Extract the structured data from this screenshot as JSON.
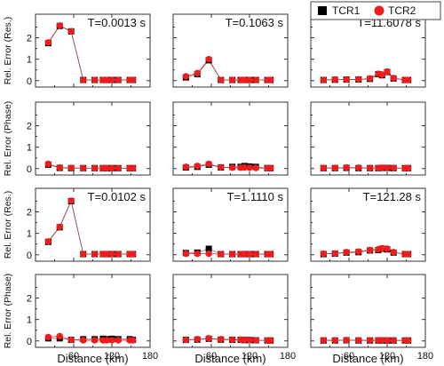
{
  "chart_data": {
    "type": "scatter",
    "colors": {
      "TCR1": "#000000",
      "TCR2": "#ee1c1c",
      "line": "#e84a4a",
      "frame": "#333333"
    },
    "legend": {
      "placement": "top-right",
      "entries": [
        "TCR1",
        "TCR2"
      ]
    },
    "xlabel": "Distance (km)",
    "xlim": [
      0,
      180
    ],
    "xticks": [
      0,
      60,
      120,
      180
    ],
    "x": [
      20,
      38,
      56,
      75,
      93,
      106,
      112,
      120,
      130,
      148,
      153
    ],
    "row_ylabels": [
      "Rel. Error (Res.)",
      "Rel. Error (Phase)",
      "Rel. Error (Res.)",
      "Rel. Error (Phase)"
    ],
    "row_yticks": [
      [
        0,
        1,
        2
      ],
      [
        0,
        1,
        2
      ],
      [
        0,
        1,
        2
      ],
      [
        0,
        1,
        2
      ]
    ],
    "ylim": [
      -0.3,
      3.1
    ],
    "panels": [
      {
        "row": 0,
        "col": 0,
        "annotation": "T=0.0013 s",
        "series": [
          {
            "name": "TCR1",
            "values": [
              1.75,
              2.55,
              2.3,
              0.03,
              0.03,
              0.03,
              0.03,
              0.03,
              0.03,
              0.03,
              0.03
            ]
          },
          {
            "name": "TCR2",
            "values": [
              1.78,
              2.57,
              2.3,
              0.03,
              0.03,
              0.03,
              0.03,
              0.03,
              0.03,
              0.03,
              0.03
            ]
          }
        ]
      },
      {
        "row": 0,
        "col": 1,
        "annotation": "T=0.1063 s",
        "series": [
          {
            "name": "TCR1",
            "values": [
              0.15,
              0.3,
              0.95,
              0.03,
              0.03,
              0.03,
              0.03,
              0.03,
              0.03,
              0.03,
              0.03
            ]
          },
          {
            "name": "TCR2",
            "values": [
              0.2,
              0.35,
              1.0,
              0.03,
              0.03,
              0.03,
              0.03,
              0.03,
              0.03,
              0.03,
              0.03
            ]
          }
        ]
      },
      {
        "row": 0,
        "col": 2,
        "annotation": "T=11.6078 s",
        "series": [
          {
            "name": "TCR1",
            "values": [
              0.03,
              0.04,
              0.05,
              0.05,
              0.08,
              0.3,
              0.25,
              0.4,
              0.1,
              0.03,
              0.03
            ]
          },
          {
            "name": "TCR2",
            "values": [
              0.03,
              0.05,
              0.05,
              0.06,
              0.1,
              0.32,
              0.28,
              0.42,
              0.12,
              0.03,
              0.03
            ]
          }
        ]
      },
      {
        "row": 1,
        "col": 0,
        "annotation": "",
        "series": [
          {
            "name": "TCR1",
            "values": [
              0.18,
              0.03,
              0.02,
              0.02,
              0.02,
              0.02,
              0.02,
              0.02,
              0.02,
              0.02,
              0.02
            ]
          },
          {
            "name": "TCR2",
            "values": [
              0.22,
              0.05,
              0.03,
              0.02,
              0.02,
              0.02,
              0.02,
              0.02,
              0.02,
              0.02,
              0.02
            ]
          }
        ]
      },
      {
        "row": 1,
        "col": 1,
        "annotation": "",
        "series": [
          {
            "name": "TCR1",
            "values": [
              0.05,
              0.08,
              0.18,
              0.05,
              0.08,
              0.08,
              0.12,
              0.1,
              0.08,
              0.02,
              0.02
            ]
          },
          {
            "name": "TCR2",
            "values": [
              0.08,
              0.12,
              0.22,
              0.06,
              0.04,
              0.04,
              0.05,
              0.04,
              0.03,
              0.02,
              0.02
            ]
          }
        ]
      },
      {
        "row": 1,
        "col": 2,
        "annotation": "",
        "series": [
          {
            "name": "TCR1",
            "values": [
              0.02,
              0.02,
              0.03,
              0.02,
              0.02,
              0.02,
              0.03,
              0.03,
              0.02,
              0.02,
              0.02
            ]
          },
          {
            "name": "TCR2",
            "values": [
              0.03,
              0.03,
              0.05,
              0.04,
              0.03,
              0.03,
              0.04,
              0.04,
              0.03,
              0.02,
              0.02
            ]
          }
        ]
      },
      {
        "row": 2,
        "col": 0,
        "annotation": "T=0.0102 s",
        "series": [
          {
            "name": "TCR1",
            "values": [
              0.6,
              1.28,
              2.5,
              0.03,
              0.03,
              0.03,
              0.03,
              0.03,
              0.03,
              0.03,
              0.03
            ]
          },
          {
            "name": "TCR2",
            "values": [
              0.62,
              1.3,
              2.52,
              0.03,
              0.03,
              0.03,
              0.03,
              0.03,
              0.03,
              0.03,
              0.03
            ]
          }
        ]
      },
      {
        "row": 2,
        "col": 1,
        "annotation": "T=1.1110 s",
        "series": [
          {
            "name": "TCR1",
            "values": [
              0.08,
              0.1,
              0.28,
              0.03,
              0.03,
              0.03,
              0.03,
              0.03,
              0.03,
              0.03,
              0.03
            ]
          },
          {
            "name": "TCR2",
            "values": [
              0.05,
              0.05,
              0.05,
              0.03,
              0.03,
              0.03,
              0.03,
              0.03,
              0.03,
              0.03,
              0.03
            ]
          }
        ]
      },
      {
        "row": 2,
        "col": 2,
        "annotation": "T=121.28 s",
        "series": [
          {
            "name": "TCR1",
            "values": [
              0.03,
              0.05,
              0.1,
              0.12,
              0.2,
              0.22,
              0.28,
              0.25,
              0.1,
              0.03,
              0.03
            ]
          },
          {
            "name": "TCR2",
            "values": [
              0.05,
              0.06,
              0.12,
              0.15,
              0.22,
              0.25,
              0.3,
              0.28,
              0.12,
              0.03,
              0.03
            ]
          }
        ]
      },
      {
        "row": 3,
        "col": 0,
        "annotation": "",
        "series": [
          {
            "name": "TCR1",
            "values": [
              0.12,
              0.12,
              0.05,
              0.08,
              0.08,
              0.1,
              0.08,
              0.1,
              0.08,
              0.08,
              0.05
            ]
          },
          {
            "name": "TCR2",
            "values": [
              0.18,
              0.22,
              0.05,
              0.03,
              0.03,
              0.03,
              0.03,
              0.03,
              0.03,
              0.03,
              0.03
            ]
          }
        ]
      },
      {
        "row": 3,
        "col": 1,
        "annotation": "",
        "series": [
          {
            "name": "TCR1",
            "values": [
              0.05,
              0.06,
              0.1,
              0.06,
              0.05,
              0.05,
              0.04,
              0.04,
              0.03,
              0.02,
              0.02
            ]
          },
          {
            "name": "TCR2",
            "values": [
              0.05,
              0.08,
              0.12,
              0.08,
              0.06,
              0.06,
              0.05,
              0.05,
              0.03,
              0.02,
              0.02
            ]
          }
        ]
      },
      {
        "row": 3,
        "col": 2,
        "annotation": "",
        "series": [
          {
            "name": "TCR1",
            "values": [
              0.02,
              0.02,
              0.03,
              0.02,
              0.02,
              0.02,
              0.02,
              0.02,
              0.02,
              0.02,
              0.02
            ]
          },
          {
            "name": "TCR2",
            "values": [
              0.03,
              0.03,
              0.04,
              0.03,
              0.03,
              0.03,
              0.03,
              0.03,
              0.03,
              0.02,
              0.02
            ]
          }
        ]
      }
    ]
  }
}
